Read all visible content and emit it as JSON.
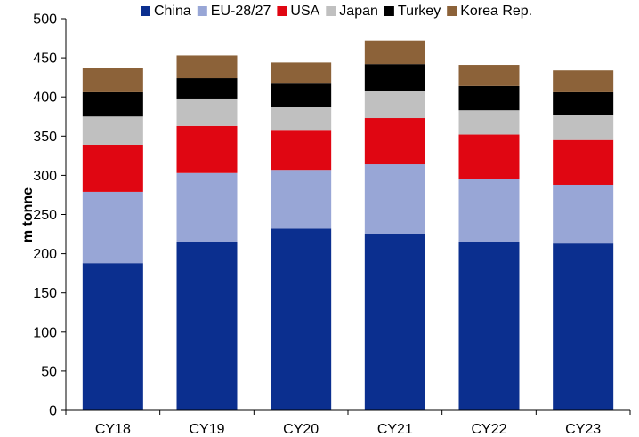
{
  "chart_data": {
    "type": "bar",
    "stacked": true,
    "title": "",
    "xlabel": "",
    "ylabel": "m tonne",
    "ylim": [
      0,
      500
    ],
    "yticks": [
      0,
      50,
      100,
      150,
      200,
      250,
      300,
      350,
      400,
      450,
      500
    ],
    "grid": false,
    "legend_position": "top",
    "categories": [
      "CY18",
      "CY19",
      "CY20",
      "CY21",
      "CY22",
      "CY23"
    ],
    "series": [
      {
        "name": "China",
        "color": "#0b2f8f",
        "values": [
          188,
          215,
          232,
          225,
          215,
          213
        ]
      },
      {
        "name": "EU-28/27",
        "color": "#98a6d6",
        "values": [
          91,
          88,
          75,
          89,
          80,
          75
        ]
      },
      {
        "name": "USA",
        "color": "#e00612",
        "values": [
          60,
          60,
          51,
          59,
          57,
          57
        ]
      },
      {
        "name": "Japan",
        "color": "#c0c0c0",
        "values": [
          36,
          35,
          29,
          35,
          31,
          32
        ]
      },
      {
        "name": "Turkey",
        "color": "#000000",
        "values": [
          31,
          26,
          30,
          34,
          31,
          29
        ]
      },
      {
        "name": "Korea Rep.",
        "color": "#8c6239",
        "values": [
          31,
          29,
          27,
          30,
          27,
          28
        ]
      }
    ]
  }
}
